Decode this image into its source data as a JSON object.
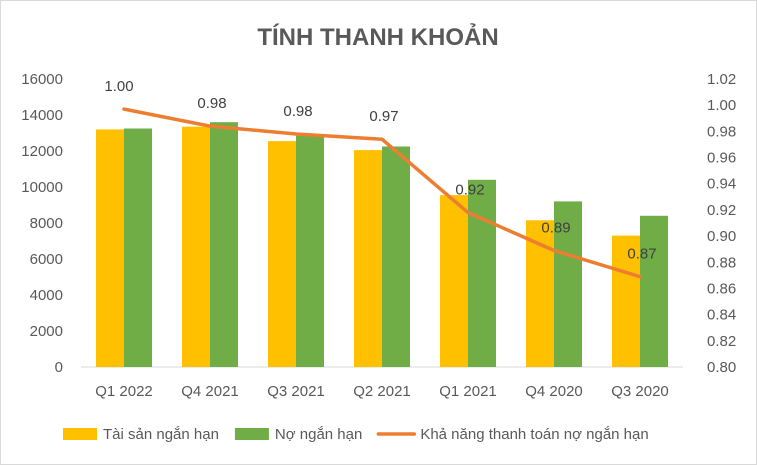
{
  "chart_data": {
    "type": "bar",
    "title": "TÍNH THANH KHOẢN",
    "categories": [
      "Q1 2022",
      "Q4 2021",
      "Q3 2021",
      "Q2 2021",
      "Q1 2021",
      "Q4 2020",
      "Q3 2020"
    ],
    "series": [
      {
        "name": "Tài sản ngắn hạn",
        "type": "bar",
        "axis": "left",
        "color": "#FFC000",
        "values": [
          13200,
          13350,
          12550,
          12050,
          9550,
          8150,
          7300
        ]
      },
      {
        "name": "Nợ ngắn hạn",
        "type": "bar",
        "axis": "left",
        "color": "#70AD47",
        "values": [
          13250,
          13600,
          12850,
          12250,
          10400,
          9200,
          8400
        ]
      },
      {
        "name": "Khả năng thanh toán nợ ngắn hạn",
        "type": "line",
        "axis": "right",
        "color": "#ED7D31",
        "values": [
          0.997,
          0.984,
          0.978,
          0.974,
          0.918,
          0.889,
          0.869
        ],
        "labels": [
          "1.00",
          "0.98",
          "0.98",
          "0.97",
          "0.92",
          "0.89",
          "0.87"
        ]
      }
    ],
    "y_left": {
      "ylim": [
        0,
        16000
      ],
      "ticks": [
        "0",
        "2000",
        "4000",
        "6000",
        "8000",
        "10000",
        "12000",
        "14000",
        "16000"
      ]
    },
    "y_right": {
      "ylim": [
        0.8,
        1.02
      ],
      "ticks": [
        "0.80",
        "0.82",
        "0.84",
        "0.86",
        "0.88",
        "0.90",
        "0.92",
        "0.94",
        "0.96",
        "0.98",
        "1.00",
        "1.02"
      ]
    },
    "grid": false,
    "legend_position": "bottom",
    "xlabel": "",
    "ylabel": ""
  }
}
